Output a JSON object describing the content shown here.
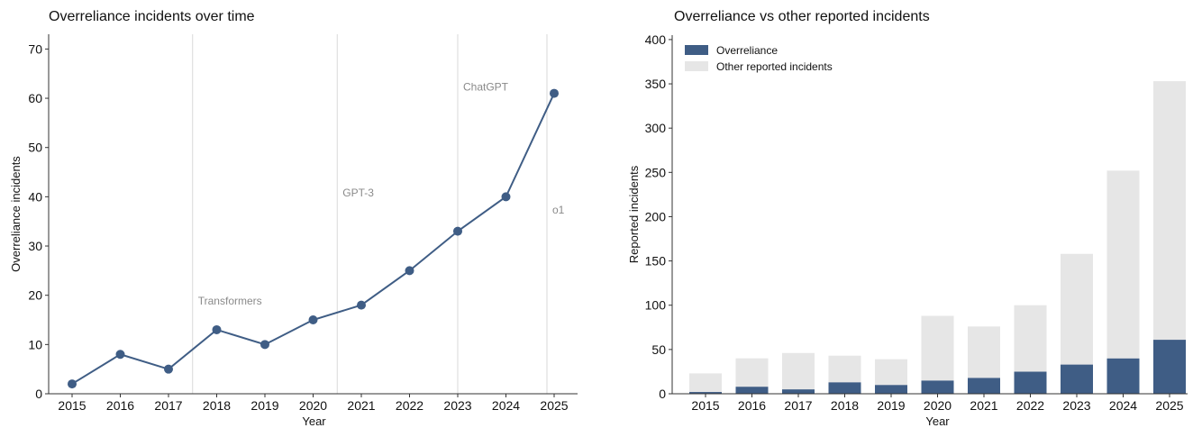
{
  "chart_data": [
    {
      "type": "line",
      "title": "Overreliance incidents over time",
      "xlabel": "Year",
      "ylabel": "Overreliance incidents",
      "ylim": [
        0,
        73
      ],
      "yticks": [
        0,
        10,
        20,
        30,
        40,
        50,
        60,
        70
      ],
      "grid": false,
      "x": [
        2015,
        2016,
        2017,
        2018,
        2019,
        2020,
        2021,
        2022,
        2023,
        2024,
        2025
      ],
      "series": [
        {
          "values": [
            2,
            8,
            5,
            13,
            10,
            15,
            18,
            25,
            33,
            40,
            61
          ]
        }
      ],
      "annotations": [
        {
          "label": "Transformers",
          "x": 2017.5,
          "text_y": 19
        },
        {
          "label": "GPT-3",
          "x": 2020.5,
          "text_y": 41
        },
        {
          "label": "ChatGPT",
          "x": 2023.0,
          "text_y": 62.5
        },
        {
          "label": "o1",
          "x": 2024.85,
          "text_y": 37.5
        }
      ],
      "colors": {
        "line": "#3f5d85",
        "annotation": "#8a8a8a",
        "vline": "#d9d9d9"
      }
    },
    {
      "type": "bar",
      "title": "Overreliance vs other reported incidents",
      "xlabel": "Year",
      "ylabel": "Reported incidents",
      "ylim": [
        0,
        405
      ],
      "yticks": [
        0,
        50,
        100,
        150,
        200,
        250,
        300,
        350,
        400
      ],
      "stacked": true,
      "legend_position": "top-left",
      "categories": [
        "2015",
        "2016",
        "2017",
        "2018",
        "2019",
        "2020",
        "2021",
        "2022",
        "2023",
        "2024",
        "2025"
      ],
      "series": [
        {
          "name": "Overreliance",
          "values": [
            2,
            8,
            5,
            13,
            10,
            15,
            18,
            25,
            33,
            40,
            61
          ]
        },
        {
          "name": "Other reported incidents",
          "values": [
            21,
            32,
            41,
            30,
            29,
            73,
            58,
            75,
            125,
            212,
            292
          ]
        }
      ],
      "colors": {
        "Overreliance": "#3f5d85",
        "Other reported incidents": "#e6e6e6"
      }
    }
  ]
}
